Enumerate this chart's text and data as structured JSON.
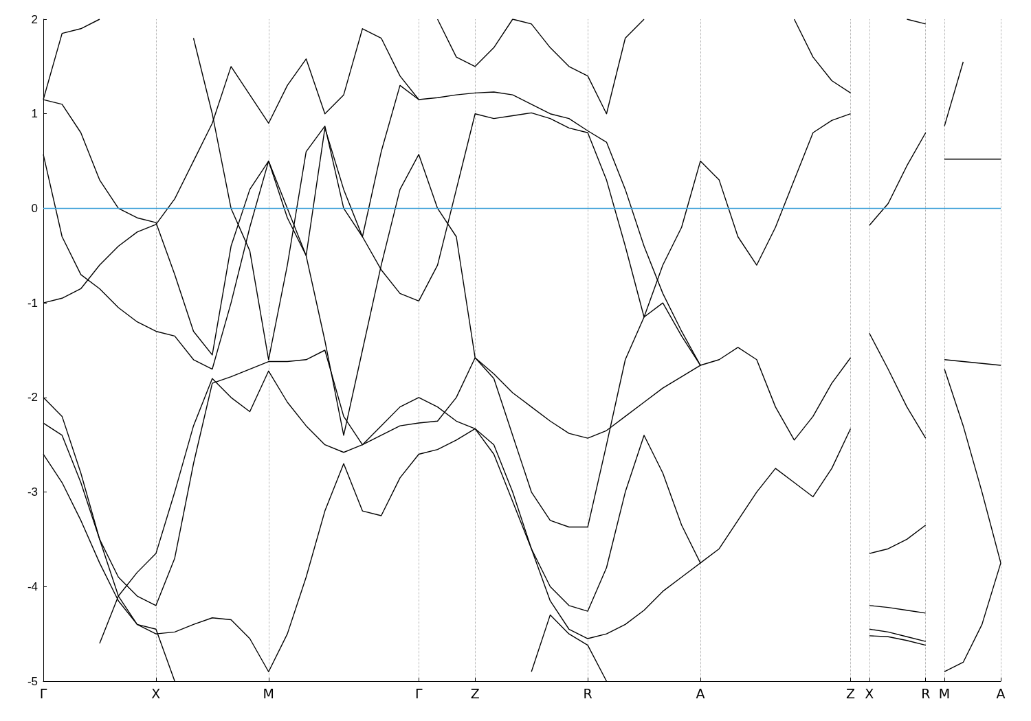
{
  "chart_data": {
    "type": "line",
    "ylim": [
      -5,
      2
    ],
    "categories": [
      "Γ",
      null,
      null,
      null,
      null,
      null,
      "X",
      null,
      null,
      null,
      null,
      null,
      "M",
      null,
      null,
      null,
      null,
      null,
      null,
      null,
      "Γ",
      null,
      null,
      "Z",
      null,
      null,
      null,
      null,
      null,
      "R",
      null,
      null,
      null,
      null,
      null,
      "A",
      null,
      null,
      null,
      null,
      null,
      null,
      null,
      "Z",
      "X",
      null,
      null,
      "R",
      "M",
      null,
      null,
      "A"
    ],
    "yticks": [
      -5,
      -4,
      -3,
      -2,
      -1,
      0,
      1,
      2
    ],
    "grid": "x",
    "marker": "none",
    "line_style": "solid",
    "ref_lines": [
      {
        "axis": "y",
        "value": 0,
        "label": null,
        "color": "#3ca0d8"
      }
    ],
    "series": [
      {
        "color": "#000000",
        "values": [
          null,
          null,
          null,
          -4.6,
          -4.1,
          -3.85,
          -3.65,
          -3.0,
          -2.3,
          -1.8,
          -2.0,
          -2.15,
          -1.72,
          -2.05,
          -2.3,
          -2.5,
          -2.58,
          -2.5,
          -2.4,
          -2.3,
          -2.27,
          -2.25,
          -2.0,
          -1.58,
          -1.75,
          -1.95,
          -2.1,
          -2.25,
          -2.38,
          -2.43,
          -2.35,
          -2.2,
          -2.05,
          -1.9,
          -1.78,
          -1.66,
          -1.6,
          -1.47,
          -1.6,
          -2.1,
          -2.45,
          -2.2,
          -1.85,
          -1.58,
          null,
          null,
          null,
          null,
          null,
          null,
          null,
          null
        ]
      },
      {
        "color": "#000000",
        "values": [
          -2.6,
          -2.9,
          -3.3,
          -3.75,
          -4.15,
          -4.4,
          -4.5,
          -4.48,
          -4.4,
          -4.33,
          -4.35,
          -4.55,
          -4.9,
          -4.5,
          -3.9,
          -3.2,
          -2.7,
          -3.2,
          -3.25,
          -2.85,
          -2.6,
          -2.55,
          -2.45,
          -2.33,
          -2.6,
          -3.1,
          -3.6,
          -4.0,
          -4.2,
          -4.26,
          -3.8,
          -3.0,
          -2.4,
          -2.8,
          -3.35,
          -3.75,
          -3.6,
          -3.3,
          -3.0,
          -2.75,
          -2.9,
          -3.05,
          -2.75,
          -2.33,
          null,
          null,
          null,
          null,
          null,
          null,
          null,
          null
        ]
      },
      {
        "color": "#000000",
        "values": [
          -2.27,
          -2.4,
          -2.9,
          -3.5,
          -3.9,
          -4.1,
          -4.2,
          -3.7,
          -2.7,
          -1.85,
          -1.78,
          -1.7,
          -1.62,
          -1.62,
          -1.6,
          -1.5,
          -2.2,
          -2.5,
          -2.3,
          -2.1,
          -2.0,
          -2.1,
          -2.25,
          -2.33,
          -2.5,
          -3.0,
          -3.6,
          -4.15,
          -4.45,
          -4.55,
          -4.5,
          -4.4,
          -4.25,
          -4.05,
          -3.9,
          -3.75,
          null,
          null,
          null,
          null,
          null,
          null,
          null,
          null,
          null,
          null,
          null,
          null,
          null,
          null,
          null,
          null
        ]
      },
      {
        "color": "#000000",
        "values": [
          -2.0,
          -2.2,
          -2.8,
          -3.5,
          -4.1,
          -4.4,
          -4.45,
          -5,
          null,
          null,
          null,
          null,
          null,
          null,
          null,
          null,
          null,
          null,
          null,
          null,
          null,
          null,
          null,
          null,
          null,
          null,
          null,
          null,
          null,
          null,
          null,
          null,
          null,
          null,
          null,
          null,
          null,
          null,
          null,
          null,
          null,
          null,
          null,
          null,
          null,
          null,
          null,
          null,
          null,
          null,
          null,
          null
        ]
      },
      {
        "color": "#000000",
        "values": [
          null,
          null,
          null,
          null,
          null,
          null,
          null,
          null,
          null,
          null,
          null,
          null,
          null,
          null,
          null,
          null,
          null,
          null,
          null,
          null,
          null,
          null,
          null,
          null,
          null,
          null,
          -4.9,
          -4.3,
          -4.5,
          -4.62,
          -5,
          null,
          null,
          null,
          null,
          null,
          null,
          null,
          null,
          null,
          null,
          null,
          null,
          null,
          null,
          null,
          null,
          null,
          null,
          null,
          null,
          null
        ]
      },
      {
        "color": "#000000",
        "values": [
          -1.0,
          -0.95,
          -0.85,
          -0.6,
          -0.4,
          -0.25,
          -0.17,
          0.1,
          0.5,
          0.9,
          1.5,
          1.2,
          0.9,
          1.3,
          1.58,
          1.0,
          1.2,
          1.9,
          1.8,
          1.4,
          1.15,
          1.17,
          1.2,
          1.22,
          1.23,
          1.2,
          1.1,
          1.0,
          0.95,
          0.82,
          0.7,
          0.2,
          -0.4,
          -0.9,
          -1.3,
          -1.66,
          null,
          null,
          null,
          null,
          null,
          null,
          null,
          null,
          null,
          null,
          null,
          null,
          null,
          null,
          null,
          null
        ]
      },
      {
        "color": "#000000",
        "values": [
          0.57,
          -0.3,
          -0.7,
          -0.85,
          -1.05,
          -1.2,
          -1.3,
          -1.35,
          -1.6,
          -1.7,
          -1.0,
          -0.2,
          0.5,
          0.0,
          -0.5,
          0.85,
          0.2,
          -0.3,
          -0.65,
          -0.9,
          -0.98,
          -0.6,
          0.2,
          1.0,
          0.95,
          0.98,
          1.01,
          0.95,
          0.85,
          0.8,
          0.3,
          -0.4,
          -1.15,
          -0.6,
          -0.2,
          0.5,
          0.3,
          -0.3,
          -0.6,
          -0.2,
          0.3,
          0.8,
          0.93,
          1.0,
          null,
          null,
          null,
          null,
          null,
          null,
          null,
          null
        ]
      },
      {
        "color": "#000000",
        "values": [
          1.15,
          1.1,
          0.8,
          0.3,
          0.0,
          -0.1,
          -0.15,
          -0.7,
          -1.3,
          -1.55,
          -0.4,
          0.2,
          0.5,
          -0.1,
          -0.5,
          -1.4,
          -2.4,
          -1.5,
          -0.6,
          0.2,
          0.57,
          0.0,
          -0.3,
          -1.58,
          -1.8,
          -2.4,
          -3.0,
          -3.3,
          -3.37,
          -3.37,
          -2.5,
          -1.6,
          -1.15,
          -1.0,
          -1.35,
          -1.66,
          null,
          null,
          null,
          null,
          null,
          null,
          null,
          null,
          null,
          null,
          null,
          null,
          null,
          null,
          null,
          null
        ]
      },
      {
        "color": "#000000",
        "values": [
          null,
          null,
          null,
          null,
          null,
          null,
          null,
          null,
          1.8,
          1.0,
          0.0,
          -0.45,
          -1.6,
          -0.6,
          0.6,
          0.87,
          0.0,
          -0.3,
          0.6,
          1.3,
          1.15,
          null,
          null,
          null,
          null,
          null,
          null,
          null,
          null,
          null,
          null,
          null,
          null,
          null,
          null,
          null,
          null,
          null,
          null,
          null,
          null,
          null,
          null,
          null,
          null,
          null,
          null,
          null,
          null,
          null,
          null,
          null
        ]
      },
      {
        "color": "#000000",
        "values": [
          null,
          null,
          null,
          null,
          null,
          null,
          null,
          null,
          null,
          null,
          null,
          null,
          null,
          null,
          null,
          null,
          null,
          null,
          null,
          null,
          null,
          2.0,
          1.6,
          1.5,
          1.7,
          2.0,
          1.95,
          1.7,
          1.5,
          1.4,
          1.0,
          1.8,
          2.0,
          null,
          null,
          null,
          null,
          null,
          null,
          null,
          2.0,
          1.6,
          1.35,
          1.22,
          null,
          null,
          null,
          null,
          null,
          null,
          null,
          null
        ]
      },
      {
        "color": "#000000",
        "values": [
          1.15,
          1.85,
          1.9,
          2.0,
          null,
          null,
          null,
          null,
          null,
          null,
          null,
          null,
          null,
          null,
          null,
          null,
          null,
          null,
          null,
          null,
          null,
          null,
          null,
          null,
          null,
          null,
          null,
          null,
          null,
          null,
          null,
          null,
          null,
          null,
          null,
          null,
          null,
          null,
          null,
          null,
          null,
          null,
          null,
          null,
          null,
          null,
          null,
          null,
          null,
          null,
          null,
          null
        ]
      },
      {
        "color": "#000000",
        "values": [
          null,
          null,
          null,
          null,
          null,
          null,
          null,
          null,
          null,
          null,
          null,
          null,
          null,
          null,
          null,
          null,
          null,
          null,
          null,
          null,
          null,
          null,
          null,
          null,
          null,
          null,
          null,
          null,
          null,
          null,
          null,
          null,
          null,
          null,
          null,
          null,
          null,
          null,
          null,
          null,
          null,
          null,
          null,
          null,
          -0.18,
          0.05,
          0.45,
          0.8,
          null,
          null,
          null,
          null
        ]
      },
      {
        "color": "#000000",
        "values": [
          null,
          null,
          null,
          null,
          null,
          null,
          null,
          null,
          null,
          null,
          null,
          null,
          null,
          null,
          null,
          null,
          null,
          null,
          null,
          null,
          null,
          null,
          null,
          null,
          null,
          null,
          null,
          null,
          null,
          null,
          null,
          null,
          null,
          null,
          null,
          null,
          null,
          null,
          null,
          null,
          null,
          null,
          null,
          null,
          -1.32,
          -1.7,
          -2.1,
          -2.43,
          null,
          null,
          null,
          null
        ]
      },
      {
        "color": "#000000",
        "values": [
          null,
          null,
          null,
          null,
          null,
          null,
          null,
          null,
          null,
          null,
          null,
          null,
          null,
          null,
          null,
          null,
          null,
          null,
          null,
          null,
          null,
          null,
          null,
          null,
          null,
          null,
          null,
          null,
          null,
          null,
          null,
          null,
          null,
          null,
          null,
          null,
          null,
          null,
          null,
          null,
          null,
          null,
          null,
          null,
          -3.65,
          -3.6,
          -3.5,
          -3.35,
          null,
          null,
          null,
          null
        ]
      },
      {
        "color": "#000000",
        "values": [
          null,
          null,
          null,
          null,
          null,
          null,
          null,
          null,
          null,
          null,
          null,
          null,
          null,
          null,
          null,
          null,
          null,
          null,
          null,
          null,
          null,
          null,
          null,
          null,
          null,
          null,
          null,
          null,
          null,
          null,
          null,
          null,
          null,
          null,
          null,
          null,
          null,
          null,
          null,
          null,
          null,
          null,
          null,
          null,
          -4.2,
          -4.22,
          -4.25,
          -4.28,
          null,
          null,
          null,
          null
        ]
      },
      {
        "color": "#000000",
        "values": [
          null,
          null,
          null,
          null,
          null,
          null,
          null,
          null,
          null,
          null,
          null,
          null,
          null,
          null,
          null,
          null,
          null,
          null,
          null,
          null,
          null,
          null,
          null,
          null,
          null,
          null,
          null,
          null,
          null,
          null,
          null,
          null,
          null,
          null,
          null,
          null,
          null,
          null,
          null,
          null,
          null,
          null,
          null,
          null,
          -4.45,
          -4.48,
          -4.53,
          -4.58,
          null,
          null,
          null,
          null
        ]
      },
      {
        "color": "#000000",
        "values": [
          null,
          null,
          null,
          null,
          null,
          null,
          null,
          null,
          null,
          null,
          null,
          null,
          null,
          null,
          null,
          null,
          null,
          null,
          null,
          null,
          null,
          null,
          null,
          null,
          null,
          null,
          null,
          null,
          null,
          null,
          null,
          null,
          null,
          null,
          null,
          null,
          null,
          null,
          null,
          null,
          null,
          null,
          null,
          null,
          -4.52,
          -4.53,
          -4.57,
          -4.62,
          null,
          null,
          null,
          null
        ]
      },
      {
        "color": "#000000",
        "values": [
          null,
          null,
          null,
          null,
          null,
          null,
          null,
          null,
          null,
          null,
          null,
          null,
          null,
          null,
          null,
          null,
          null,
          null,
          null,
          null,
          null,
          null,
          null,
          null,
          null,
          null,
          null,
          null,
          null,
          null,
          null,
          null,
          null,
          null,
          null,
          null,
          null,
          null,
          null,
          null,
          null,
          null,
          null,
          null,
          null,
          null,
          2.0,
          1.95,
          null,
          null,
          null,
          null
        ]
      },
      {
        "color": "#000000",
        "values": [
          null,
          null,
          null,
          null,
          null,
          null,
          null,
          null,
          null,
          null,
          null,
          null,
          null,
          null,
          null,
          null,
          null,
          null,
          null,
          null,
          null,
          null,
          null,
          null,
          null,
          null,
          null,
          null,
          null,
          null,
          null,
          null,
          null,
          null,
          null,
          null,
          null,
          null,
          null,
          null,
          null,
          null,
          null,
          null,
          null,
          null,
          null,
          null,
          0.87,
          1.55,
          null,
          null
        ]
      },
      {
        "color": "#000000",
        "values": [
          null,
          null,
          null,
          null,
          null,
          null,
          null,
          null,
          null,
          null,
          null,
          null,
          null,
          null,
          null,
          null,
          null,
          null,
          null,
          null,
          null,
          null,
          null,
          null,
          null,
          null,
          null,
          null,
          null,
          null,
          null,
          null,
          null,
          null,
          null,
          null,
          null,
          null,
          null,
          null,
          null,
          null,
          null,
          null,
          null,
          null,
          null,
          null,
          0.52,
          0.52,
          0.52,
          0.52
        ]
      },
      {
        "color": "#000000",
        "values": [
          null,
          null,
          null,
          null,
          null,
          null,
          null,
          null,
          null,
          null,
          null,
          null,
          null,
          null,
          null,
          null,
          null,
          null,
          null,
          null,
          null,
          null,
          null,
          null,
          null,
          null,
          null,
          null,
          null,
          null,
          null,
          null,
          null,
          null,
          null,
          null,
          null,
          null,
          null,
          null,
          null,
          null,
          null,
          null,
          null,
          null,
          null,
          null,
          -1.6,
          -1.62,
          -1.64,
          -1.66
        ]
      },
      {
        "color": "#000000",
        "values": [
          null,
          null,
          null,
          null,
          null,
          null,
          null,
          null,
          null,
          null,
          null,
          null,
          null,
          null,
          null,
          null,
          null,
          null,
          null,
          null,
          null,
          null,
          null,
          null,
          null,
          null,
          null,
          null,
          null,
          null,
          null,
          null,
          null,
          null,
          null,
          null,
          null,
          null,
          null,
          null,
          null,
          null,
          null,
          null,
          null,
          null,
          null,
          null,
          -1.7,
          -2.3,
          -3.0,
          -3.75
        ]
      },
      {
        "color": "#000000",
        "values": [
          null,
          null,
          null,
          null,
          null,
          null,
          null,
          null,
          null,
          null,
          null,
          null,
          null,
          null,
          null,
          null,
          null,
          null,
          null,
          null,
          null,
          null,
          null,
          null,
          null,
          null,
          null,
          null,
          null,
          null,
          null,
          null,
          null,
          null,
          null,
          null,
          null,
          null,
          null,
          null,
          null,
          null,
          null,
          null,
          null,
          null,
          null,
          null,
          -4.9,
          -4.8,
          -4.4,
          -3.75
        ]
      }
    ]
  }
}
